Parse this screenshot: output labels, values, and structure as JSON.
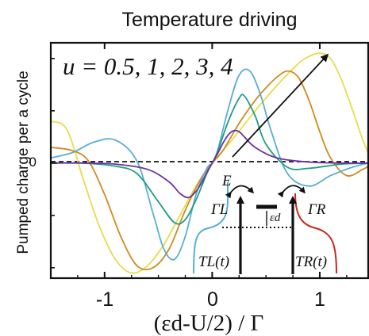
{
  "chart_data": {
    "type": "line",
    "title": "Temperature driving",
    "xlabel": "(εd-U/2) / Γ",
    "ylabel": "Pumped charge per a cycle",
    "xlim": [
      -1.5,
      1.45
    ],
    "ylim": [
      -1.1,
      1.15
    ],
    "x_ticks": [
      -1,
      0,
      1
    ],
    "x_tick_labels": [
      "-1",
      "0",
      "1"
    ],
    "y_ticks": [
      0
    ],
    "y_tick_labels": [
      "0"
    ],
    "grid": false,
    "annotation_text": "u = 0.5, 1, 2, 3, 4",
    "series": [
      {
        "color": "#7030a0",
        "x": [
          -1.5,
          -1.2,
          -0.9,
          -0.6,
          -0.4,
          -0.3,
          -0.22,
          -0.15,
          -0.1,
          -0.05,
          0,
          0.05,
          0.1,
          0.15,
          0.2,
          0.25,
          0.3,
          0.4,
          0.6,
          0.9,
          1.2,
          1.45
        ],
        "y": [
          0,
          0,
          -0.01,
          -0.06,
          -0.18,
          -0.29,
          -0.33,
          -0.27,
          -0.19,
          -0.09,
          0,
          0.09,
          0.19,
          0.27,
          0.31,
          0.3,
          0.25,
          0.15,
          0.05,
          0.01,
          0,
          0
        ]
      },
      {
        "color": "#1f9e80",
        "x": [
          -1.5,
          -1.2,
          -0.9,
          -0.7,
          -0.5,
          -0.35,
          -0.25,
          -0.15,
          -0.05,
          0,
          0.05,
          0.15,
          0.25,
          0.3,
          0.4,
          0.5,
          0.7,
          0.9,
          1.2,
          1.45
        ],
        "y": [
          0,
          0,
          -0.03,
          -0.1,
          -0.37,
          -0.57,
          -0.54,
          -0.35,
          -0.1,
          0,
          0.11,
          0.4,
          0.62,
          0.64,
          0.45,
          0.18,
          -0.04,
          -0.05,
          -0.01,
          0
        ]
      },
      {
        "color": "#5aaed3",
        "x": [
          -1.5,
          -1.3,
          -1.1,
          -0.9,
          -0.7,
          -0.55,
          -0.45,
          -0.35,
          -0.25,
          -0.15,
          -0.05,
          0,
          0.05,
          0.15,
          0.25,
          0.35,
          0.45,
          0.55,
          0.7,
          0.9,
          1.1,
          1.3,
          1.45
        ],
        "y": [
          0.05,
          0.1,
          0.2,
          0.22,
          0.02,
          -0.48,
          -0.82,
          -0.92,
          -0.7,
          -0.3,
          -0.05,
          0,
          0.12,
          0.52,
          0.84,
          0.88,
          0.65,
          0.3,
          -0.1,
          -0.22,
          -0.12,
          -0.04,
          0
        ]
      },
      {
        "color": "#d08b1f",
        "x": [
          -1.5,
          -1.3,
          -1.15,
          -1,
          -0.85,
          -0.7,
          -0.55,
          -0.4,
          -0.25,
          -0.1,
          0,
          0.1,
          0.25,
          0.4,
          0.5,
          0.6,
          0.7,
          0.8,
          0.9,
          1,
          1.1,
          1.25,
          1.4,
          1.45
        ],
        "y": [
          0.15,
          0.12,
          0.02,
          -0.3,
          -0.7,
          -0.98,
          -1.0,
          -0.82,
          -0.45,
          -0.14,
          0,
          0.12,
          0.38,
          0.6,
          0.72,
          0.82,
          0.88,
          0.82,
          0.6,
          0.3,
          0.05,
          -0.12,
          -0.06,
          -0.03
        ]
      },
      {
        "color": "#e8dc4a",
        "x": [
          -1.5,
          -1.35,
          -1.2,
          -1.05,
          -0.9,
          -0.75,
          -0.6,
          -0.45,
          -0.3,
          -0.15,
          0,
          0.2,
          0.4,
          0.6,
          0.8,
          0.9,
          1,
          1.1,
          1.2,
          1.3,
          1.4,
          1.45
        ],
        "y": [
          0.4,
          0.32,
          -0.15,
          -0.6,
          -0.92,
          -1.05,
          -0.98,
          -0.78,
          -0.5,
          -0.22,
          0,
          0.24,
          0.5,
          0.74,
          0.95,
          1.02,
          1.05,
          1.0,
          0.8,
          0.52,
          0.22,
          0.1
        ]
      }
    ]
  },
  "inset": {
    "energy_label": "E",
    "gamma_left": "ΓL",
    "gamma_right": "ΓR",
    "epsilon_label": "εd",
    "temp_left": "TL(t)",
    "temp_right": "TR(t)",
    "temp_left_color": "#3a78c2",
    "temp_right_color": "#c8281e"
  }
}
